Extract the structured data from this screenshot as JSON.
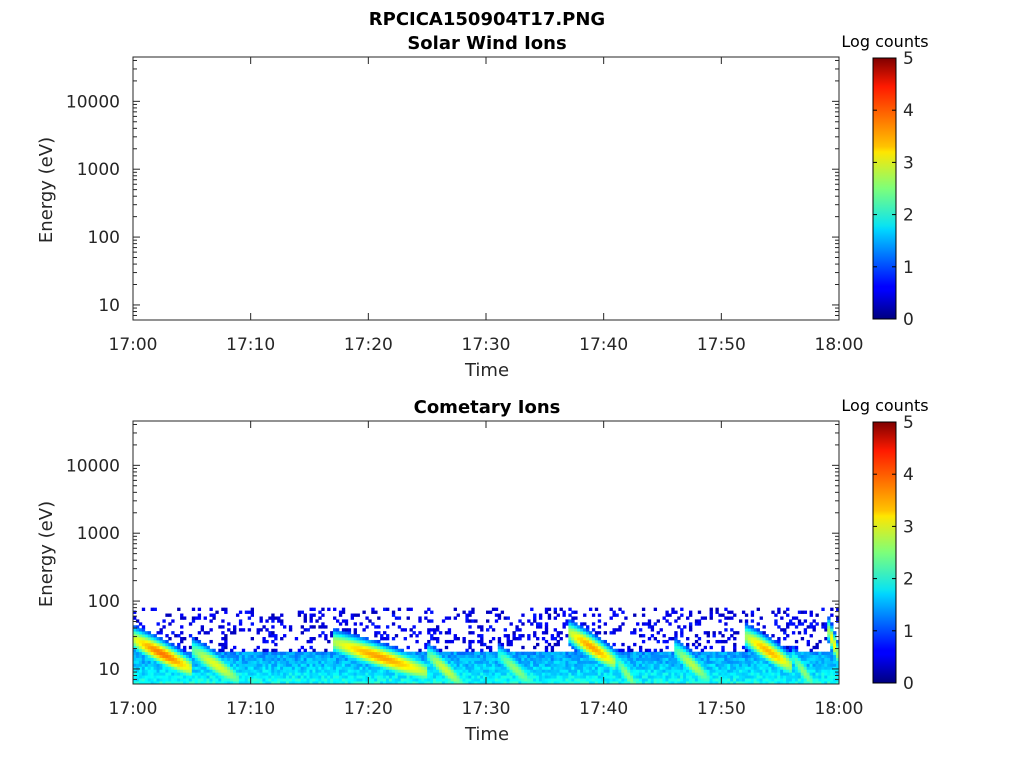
{
  "figure": {
    "title": "RPCICA150904T17.PNG"
  },
  "chart_data": [
    {
      "type": "heatmap",
      "title": "Solar Wind Ions",
      "xlabel": "Time",
      "ylabel": "Energy (eV)",
      "x_ticks": [
        "17:00",
        "17:10",
        "17:20",
        "17:30",
        "17:40",
        "17:50",
        "18:00"
      ],
      "y_ticks": [
        "10",
        "100",
        "1000",
        "10000"
      ],
      "y_scale": "log",
      "ylim": [
        6,
        45000
      ],
      "xlim": [
        "17:00",
        "18:00"
      ],
      "colorbar": {
        "label": "Log counts",
        "ticks": [
          "0",
          "1",
          "2",
          "3",
          "4",
          "5"
        ],
        "range": [
          0,
          5
        ],
        "colormap": "jet"
      },
      "data": "no counts shown"
    },
    {
      "type": "heatmap",
      "title": "Cometary Ions",
      "xlabel": "Time",
      "ylabel": "Energy (eV)",
      "x_ticks": [
        "17:00",
        "17:10",
        "17:20",
        "17:30",
        "17:40",
        "17:50",
        "18:00"
      ],
      "y_ticks": [
        "10",
        "100",
        "1000",
        "10000"
      ],
      "y_scale": "log",
      "ylim": [
        6,
        45000
      ],
      "xlim": [
        "17:00",
        "18:00"
      ],
      "colorbar": {
        "label": "Log counts",
        "ticks": [
          "0",
          "1",
          "2",
          "3",
          "4",
          "5"
        ],
        "range": [
          0,
          5
        ],
        "colormap": "jet"
      },
      "energy_range_with_counts_eV": [
        6,
        80
      ],
      "bursts": [
        {
          "start": "17:00",
          "end": "17:05",
          "peak_energy_eV": 20,
          "peak_log_counts": 3.8
        },
        {
          "start": "17:05",
          "end": "17:09",
          "peak_energy_eV": 14,
          "peak_log_counts": 3.0
        },
        {
          "start": "17:17",
          "end": "17:25",
          "peak_energy_eV": 18,
          "peak_log_counts": 3.6
        },
        {
          "start": "17:25",
          "end": "17:28",
          "peak_energy_eV": 12,
          "peak_log_counts": 2.9
        },
        {
          "start": "17:31",
          "end": "17:34",
          "peak_energy_eV": 12,
          "peak_log_counts": 2.6
        },
        {
          "start": "17:37",
          "end": "17:41",
          "peak_energy_eV": 25,
          "peak_log_counts": 3.6
        },
        {
          "start": "17:41",
          "end": "17:43",
          "peak_energy_eV": 10,
          "peak_log_counts": 2.6
        },
        {
          "start": "17:46",
          "end": "17:49",
          "peak_energy_eV": 14,
          "peak_log_counts": 2.8
        },
        {
          "start": "17:52",
          "end": "17:56",
          "peak_energy_eV": 22,
          "peak_log_counts": 3.5
        },
        {
          "start": "17:56",
          "end": "17:58",
          "peak_energy_eV": 11,
          "peak_log_counts": 2.6
        },
        {
          "start": "17:59",
          "end": "18:00",
          "peak_energy_eV": 30,
          "peak_log_counts": 3.2
        }
      ]
    }
  ]
}
